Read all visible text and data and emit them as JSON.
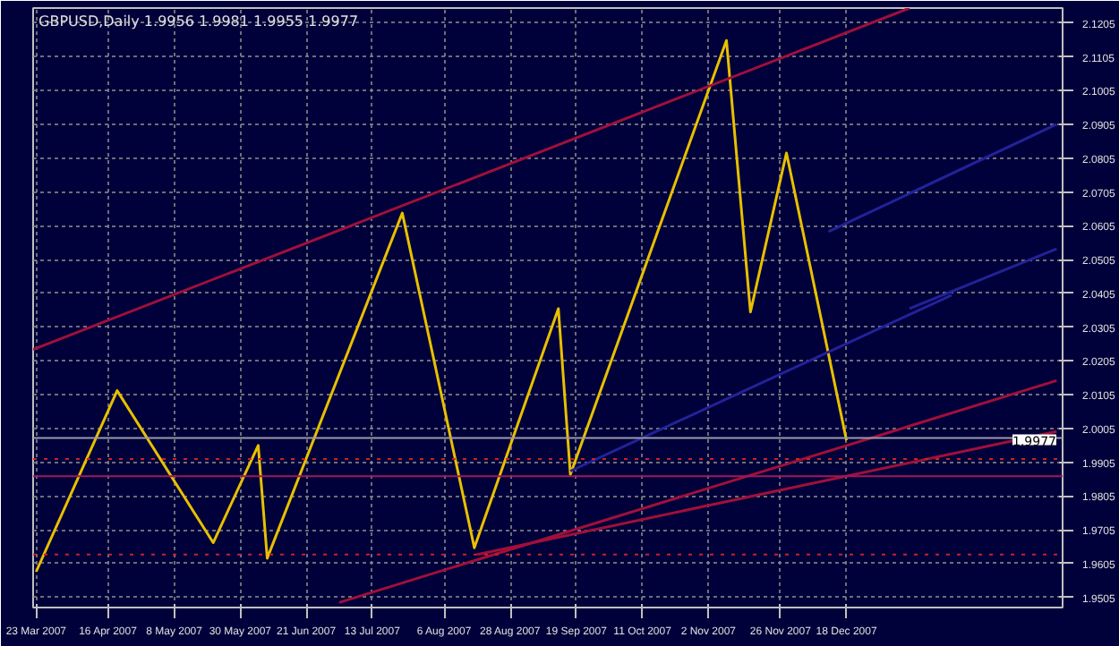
{
  "chart_data": {
    "type": "line",
    "title": "GBPUSD,Daily  1.9956 1.9981 1.9955 1.9977",
    "xlim": [
      "2007-03-22",
      "2008-02-28"
    ],
    "xticks": [
      {
        "value": "2007-03-23",
        "label": "23 Mar 2007"
      },
      {
        "value": "2007-04-16",
        "label": "16 Apr 2007"
      },
      {
        "value": "2007-05-08",
        "label": "8 May 2007"
      },
      {
        "value": "2007-05-30",
        "label": "30 May 2007"
      },
      {
        "value": "2007-06-21",
        "label": "21 Jun 2007"
      },
      {
        "value": "2007-07-13",
        "label": "13 Jul 2007"
      },
      {
        "value": "2007-08-06",
        "label": "6 Aug 2007"
      },
      {
        "value": "2007-08-28",
        "label": "28 Aug 2007"
      },
      {
        "value": "2007-09-19",
        "label": "19 Sep 2007"
      },
      {
        "value": "2007-10-11",
        "label": "11 Oct 2007"
      },
      {
        "value": "2007-11-02",
        "label": "2 Nov 2007"
      },
      {
        "value": "2007-11-26",
        "label": "26 Nov 2007"
      },
      {
        "value": "2007-12-18",
        "label": "18 Dec 2007"
      }
    ],
    "ylim": [
      1.9475,
      2.125
    ],
    "yticks": [
      1.9505,
      1.9605,
      1.9705,
      1.9805,
      1.9905,
      2.0005,
      2.0105,
      2.0205,
      2.0305,
      2.0405,
      2.0505,
      2.0605,
      2.0705,
      2.0805,
      2.0905,
      2.1005,
      2.1105,
      2.1205
    ],
    "grid": true,
    "line_style": "solid",
    "series": [
      {
        "color": "#e8c000",
        "x": [
          "2007-03-23",
          "2007-04-19",
          "2007-05-21",
          "2007-06-05",
          "2007-06-08",
          "2007-07-23",
          "2007-08-16",
          "2007-09-13",
          "2007-09-17",
          "2007-11-08",
          "2007-11-16",
          "2007-11-28",
          "2007-12-18"
        ],
        "values": [
          1.9581,
          2.0117,
          1.9667,
          1.9955,
          1.9621,
          2.0643,
          1.9652,
          2.036,
          1.9869,
          2.1154,
          2.035,
          2.0821,
          1.997
        ]
      },
      {
        "color": "#a0103a",
        "x": [
          "2007-03-22",
          "2008-01-08"
        ],
        "values": [
          2.0239,
          2.125
        ]
      },
      {
        "color": "#a0103a",
        "x": [
          "2007-07-02",
          "2008-02-26"
        ],
        "values": [
          1.949,
          2.0147
        ]
      },
      {
        "color": "#a0103a",
        "x": [
          "2007-08-17",
          "2008-02-26"
        ],
        "values": [
          1.9632,
          1.9996
        ]
      },
      {
        "color": "#22229a",
        "x": [
          "2007-12-12",
          "2008-02-26"
        ],
        "values": [
          2.0588,
          2.0906
        ]
      },
      {
        "color": "#22229a",
        "x": [
          "2008-01-08",
          "2008-02-26"
        ],
        "values": [
          2.036,
          2.0537
        ]
      },
      {
        "color": "#22229a",
        "x": [
          "2007-09-17",
          "2008-01-22"
        ],
        "values": [
          1.9879,
          2.04
        ]
      }
    ],
    "ref_lines": [
      {
        "axis": "y",
        "value": 1.9977,
        "label": "1.9977",
        "color": "#9a9aa8",
        "line_style": "solid"
      },
      {
        "axis": "y",
        "value": 1.9915,
        "label": null,
        "color": "#d02020",
        "line_style": "dotted"
      },
      {
        "axis": "y",
        "value": 1.9864,
        "label": null,
        "color": "#a0185a",
        "line_style": "solid"
      },
      {
        "axis": "y",
        "value": 1.9632,
        "label": null,
        "color": "#d02020",
        "line_style": "dotted"
      }
    ]
  }
}
